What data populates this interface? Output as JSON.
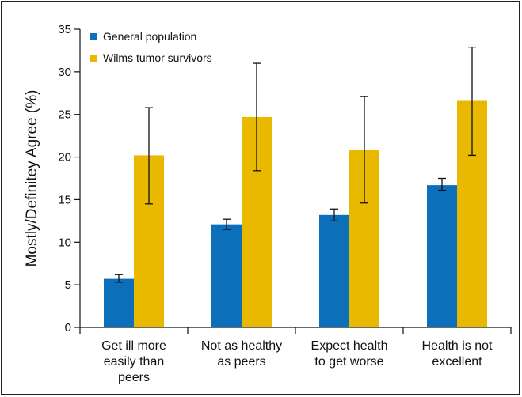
{
  "chart_data": {
    "type": "bar",
    "title": "",
    "xlabel": "",
    "ylabel": "Mostly/Definitey Agree (%)",
    "ylim": [
      0,
      35
    ],
    "yticks": [
      0,
      5,
      10,
      15,
      20,
      25,
      30,
      35
    ],
    "grid": false,
    "legend_position": "top-left",
    "categories": [
      [
        "Get ill more",
        "easily than",
        "peers"
      ],
      [
        "Not as healthy",
        "as peers"
      ],
      [
        "Expect health",
        "to get worse"
      ],
      [
        "Health is not",
        "excellent"
      ]
    ],
    "series": [
      {
        "name": "General population",
        "color": "#0b6fb9",
        "values": [
          5.7,
          12.1,
          13.2,
          16.7
        ],
        "error_low": [
          5.3,
          11.5,
          12.5,
          16.1
        ],
        "error_high": [
          6.2,
          12.7,
          13.9,
          17.5
        ]
      },
      {
        "name": "Wilms tumor survivors",
        "color": "#e9b900",
        "values": [
          20.2,
          24.7,
          20.8,
          26.6
        ],
        "error_low": [
          14.5,
          18.4,
          14.6,
          20.2
        ],
        "error_high": [
          25.8,
          31.0,
          27.1,
          32.9
        ]
      }
    ]
  }
}
